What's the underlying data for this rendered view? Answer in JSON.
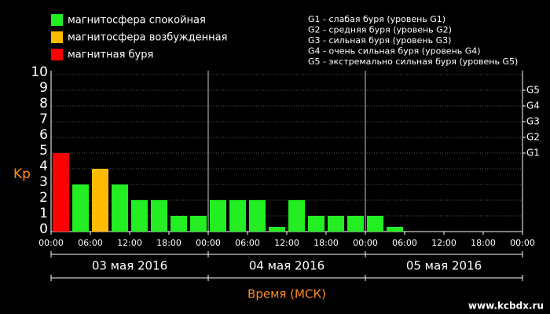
{
  "chart_data": {
    "type": "bar",
    "legend": [
      {
        "name": "магнитосфера спокойная",
        "color": "#22ee22"
      },
      {
        "name": "магнитосфера возбужденная",
        "color": "#ffbb00"
      },
      {
        "name": "магнитная буря",
        "color": "#ff0000"
      }
    ],
    "storm_levels": [
      "G1 - слабая буря (уровень G1)",
      "G2 - средняя буря (уровень G2)",
      "G3 - сильная буря (уровень G3)",
      "G4 - очень сильная буря (уровень G4)",
      "G5 - экстремально сильная буря (уровень G5)"
    ],
    "ylabel": "Kp",
    "xlabel": "Время (МСК)",
    "watermark": "www.kcbdx.ru",
    "dates": [
      "03 мая 2016",
      "04 мая 2016",
      "05 мая 2016"
    ],
    "x": [
      0,
      3,
      6,
      9,
      12,
      15,
      18,
      21,
      24,
      27,
      30,
      33,
      36,
      39,
      42,
      45,
      48,
      51,
      54,
      57,
      60,
      63,
      66,
      69
    ],
    "bar_width": 3,
    "values": [
      5,
      3,
      4,
      3,
      2,
      2,
      1,
      1,
      2,
      2,
      2,
      0.3,
      2,
      1,
      1,
      1,
      1,
      0.3,
      null,
      null,
      null,
      null,
      null,
      null
    ],
    "bar_colors": [
      "#ff0000",
      "#22ee22",
      "#ffbb00",
      "#22ee22",
      "#22ee22",
      "#22ee22",
      "#22ee22",
      "#22ee22",
      "#22ee22",
      "#22ee22",
      "#22ee22",
      "#22ee22",
      "#22ee22",
      "#22ee22",
      "#22ee22",
      "#22ee22",
      "#22ee22",
      "#22ee22",
      null,
      null,
      null,
      null,
      null,
      null
    ],
    "xlim": [
      0,
      72
    ],
    "xticks": [
      {
        "value": 0,
        "label": "00:00"
      },
      {
        "value": 6,
        "label": "06:00"
      },
      {
        "value": 12,
        "label": "12:00"
      },
      {
        "value": 18,
        "label": "18:00"
      },
      {
        "value": 24,
        "label": "00:00"
      },
      {
        "value": 30,
        "label": "06:00"
      },
      {
        "value": 36,
        "label": "12:00"
      },
      {
        "value": 42,
        "label": "18:00"
      },
      {
        "value": 48,
        "label": "00:00"
      },
      {
        "value": 54,
        "label": "06:00"
      },
      {
        "value": 60,
        "label": "12:00"
      },
      {
        "value": 66,
        "label": "18:00"
      },
      {
        "value": 72,
        "label": "00:00"
      }
    ],
    "ylim": [
      0,
      10
    ],
    "yticks": [
      0,
      1,
      2,
      3,
      4,
      5,
      6,
      7,
      8,
      9,
      10
    ],
    "y2lim": [
      0,
      10
    ],
    "y2ticks": [
      {
        "value": 5,
        "label": "G1"
      },
      {
        "value": 6,
        "label": "G2"
      },
      {
        "value": 7,
        "label": "G3"
      },
      {
        "value": 8,
        "label": "G4"
      },
      {
        "value": 9,
        "label": "G5"
      }
    ],
    "grid": true
  }
}
